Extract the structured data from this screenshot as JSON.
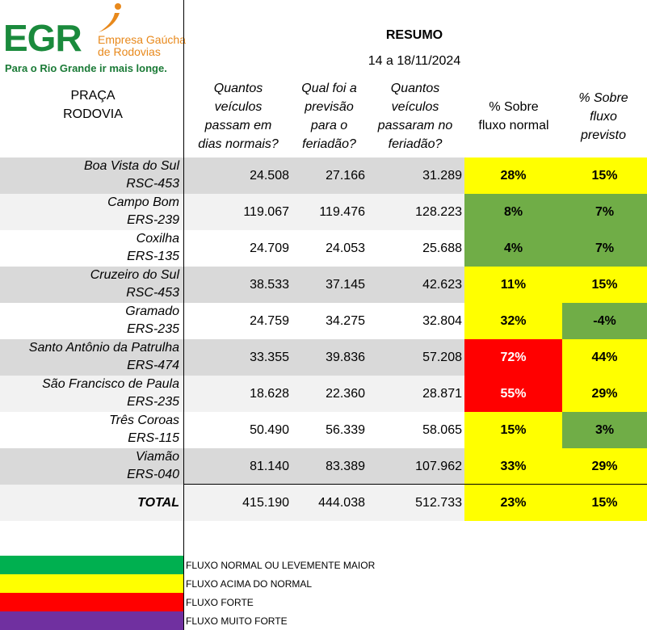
{
  "logo": {
    "brand": "EGR",
    "company_line1": "Empresa Gaúcha",
    "company_line2": "de Rodovias",
    "tagline": "Para o Rio Grande ir mais longe."
  },
  "header": {
    "title": "RESUMO",
    "dates": "14 a 18/11/2024",
    "col_praca_line1": "PRAÇA",
    "col_praca_line2": "RODOVIA",
    "col_normal": [
      "Quantos",
      "veículos",
      "passam em",
      "dias normais?"
    ],
    "col_previsao": [
      "Qual foi a",
      "previsão",
      "para o",
      "feriadão?"
    ],
    "col_passaram": [
      "Quantos",
      "veículos",
      "passaram no",
      "feriadão?"
    ],
    "col_pct_normal": [
      "% Sobre",
      "fluxo normal"
    ],
    "col_pct_previsto": [
      "% Sobre",
      "fluxo",
      "previsto"
    ]
  },
  "rows": [
    {
      "praca": "Boa Vista do Sul",
      "rodovia": "RSC-453",
      "normal": "24.508",
      "previsao": "27.166",
      "passaram": "31.289",
      "pct_normal": "28%",
      "pct_previsto": "15%"
    },
    {
      "praca": "Campo Bom",
      "rodovia": "ERS-239",
      "normal": "119.067",
      "previsao": "119.476",
      "passaram": "128.223",
      "pct_normal": "8%",
      "pct_previsto": "7%"
    },
    {
      "praca": "Coxilha",
      "rodovia": "ERS-135",
      "normal": "24.709",
      "previsao": "24.053",
      "passaram": "25.688",
      "pct_normal": "4%",
      "pct_previsto": "7%"
    },
    {
      "praca": "Cruzeiro do Sul",
      "rodovia": "RSC-453",
      "normal": "38.533",
      "previsao": "37.145",
      "passaram": "42.623",
      "pct_normal": "11%",
      "pct_previsto": "15%"
    },
    {
      "praca": "Gramado",
      "rodovia": "ERS-235",
      "normal": "24.759",
      "previsao": "34.275",
      "passaram": "32.804",
      "pct_normal": "32%",
      "pct_previsto": "-4%"
    },
    {
      "praca": "Santo Antônio da Patrulha",
      "rodovia": "ERS-474",
      "normal": "33.355",
      "previsao": "39.836",
      "passaram": "57.208",
      "pct_normal": "72%",
      "pct_previsto": "44%"
    },
    {
      "praca": "São Francisco de Paula",
      "rodovia": "ERS-235",
      "normal": "18.628",
      "previsao": "22.360",
      "passaram": "28.871",
      "pct_normal": "55%",
      "pct_previsto": "29%"
    },
    {
      "praca": "Três Coroas",
      "rodovia": "ERS-115",
      "normal": "50.490",
      "previsao": "56.339",
      "passaram": "58.065",
      "pct_normal": "15%",
      "pct_previsto": "3%"
    },
    {
      "praca": "Viamão",
      "rodovia": "ERS-040",
      "normal": "81.140",
      "previsao": "83.389",
      "passaram": "107.962",
      "pct_normal": "33%",
      "pct_previsto": "29%"
    }
  ],
  "total": {
    "label": "TOTAL",
    "normal": "415.190",
    "previsao": "444.038",
    "passaram": "512.733",
    "pct_normal": "23%",
    "pct_previsto": "15%"
  },
  "legend": [
    {
      "label": "FLUXO NORMAL OU LEVEMENTE MAIOR",
      "color": "#00b050"
    },
    {
      "label": "FLUXO ACIMA DO NORMAL",
      "color": "#ffff00"
    },
    {
      "label": "FLUXO FORTE",
      "color": "#ff0000"
    },
    {
      "label": "FLUXO MUITO FORTE",
      "color": "#7030a0"
    }
  ],
  "colors": {
    "yellow": "#ffff00",
    "green": "#70ad47",
    "red": "#ff0000",
    "brand_green": "#1a8a3c",
    "brand_orange": "#e8891c"
  }
}
